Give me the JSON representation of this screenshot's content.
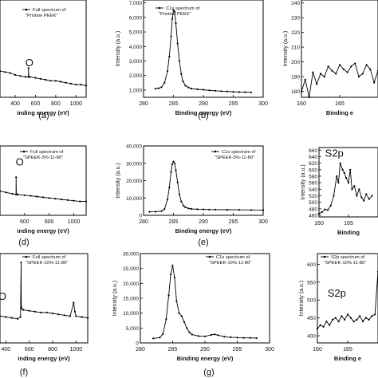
{
  "chart_data": [
    {
      "id": "a",
      "type": "line",
      "panel_label": "(a)",
      "legend": [
        "Full spectrum of",
        "\"Pristine PEEK\""
      ],
      "xlabel": "inding energy (eV)",
      "ylabel": "",
      "xticks": [
        400,
        600,
        800,
        1000
      ],
      "yticks": [],
      "xlim": [
        250,
        1100
      ],
      "ylim": [
        0,
        100
      ],
      "annotations": [
        {
          "text": "O",
          "x": 540,
          "y": 32,
          "size": 13
        }
      ],
      "series": [
        {
          "x": [
            250,
            300,
            350,
            400,
            450,
            500,
            530,
            531,
            533,
            545,
            600,
            650,
            700,
            750,
            800,
            850,
            900,
            950,
            1000,
            1050,
            1100
          ],
          "y": [
            27,
            26,
            25,
            23,
            22,
            21,
            21,
            30,
            21,
            21,
            20,
            19,
            18,
            17,
            17,
            16,
            15,
            14,
            13,
            13,
            12
          ]
        }
      ]
    },
    {
      "id": "b",
      "type": "line",
      "panel_label": "(b)",
      "legend": [
        "C1s spectrum of",
        "\"Pristine PEEK\""
      ],
      "xlabel": "Binding energy (eV)",
      "ylabel": "Intensity (a.u.)",
      "xticks": [
        280,
        285,
        290,
        295,
        300
      ],
      "yticks": [
        1000,
        2000,
        3000,
        4000,
        5000,
        6000,
        7000
      ],
      "ytick_labels": [
        "1,000",
        "2,000",
        "3,000",
        "4,000",
        "5,000",
        "6,000",
        "7,000"
      ],
      "xlim": [
        280,
        300
      ],
      "ylim": [
        500,
        7200
      ],
      "series": [
        {
          "x": [
            282,
            282.5,
            283,
            283.5,
            284,
            284.3,
            284.6,
            284.8,
            285,
            285.2,
            285.4,
            285.7,
            286,
            286.3,
            286.6,
            287,
            287.5,
            288,
            289,
            290,
            291,
            292,
            293,
            294,
            295,
            296,
            297,
            298
          ],
          "y": [
            1100,
            1120,
            1200,
            1500,
            2300,
            3300,
            4700,
            5900,
            6500,
            6400,
            5600,
            4200,
            3000,
            2100,
            1600,
            1300,
            1180,
            1100,
            1050,
            1020,
            980,
            950,
            920,
            900,
            880,
            860,
            850,
            840
          ]
        }
      ]
    },
    {
      "id": "c",
      "type": "line",
      "panel_label": "",
      "legend": [],
      "xlabel": "Binding e",
      "ylabel": "Intensity (a.u.)",
      "xticks": [
        160,
        165
      ],
      "yticks": [
        180,
        190,
        200,
        210,
        220,
        230,
        240
      ],
      "xlim": [
        160,
        170
      ],
      "ylim": [
        176,
        242
      ],
      "series": [
        {
          "x": [
            160,
            160.5,
            161,
            161.5,
            162,
            162.5,
            163,
            163.5,
            164,
            164.5,
            165,
            165.5,
            166,
            166.5,
            167,
            167.5,
            168,
            168.5,
            169,
            169.5,
            170
          ],
          "y": [
            180,
            188,
            176,
            193,
            185,
            192,
            190,
            197,
            194,
            192,
            198,
            195,
            193,
            197,
            199,
            190,
            192,
            198,
            195,
            186,
            194
          ]
        }
      ]
    },
    {
      "id": "d",
      "type": "line",
      "panel_label": "(d)",
      "legend": [
        "Full spectrum of",
        "\"SPEEK-3%-11-80\""
      ],
      "xlabel": "inding energy (eV)",
      "ylabel": "",
      "xticks": [
        600,
        800,
        1000
      ],
      "yticks": [],
      "xlim": [
        400,
        1100
      ],
      "ylim": [
        0,
        100
      ],
      "annotations": [
        {
          "text": "O",
          "x": 560,
          "y": 72,
          "size": 13
        }
      ],
      "series": [
        {
          "x": [
            400,
            450,
            500,
            530,
            531,
            533,
            545,
            600,
            650,
            700,
            750,
            800,
            850,
            900,
            950,
            1000,
            1050,
            1100
          ],
          "y": [
            35,
            33,
            31,
            30,
            55,
            30,
            30,
            29,
            28,
            27,
            26,
            25,
            24,
            23,
            22,
            21,
            20,
            20
          ]
        }
      ]
    },
    {
      "id": "e",
      "type": "line",
      "panel_label": "(e)",
      "legend": [
        "C1s spectrum of",
        "\"SPEEK-3%-11-80\""
      ],
      "xlabel": "Binding energy (eV)",
      "ylabel": "Intensity (a.u.)",
      "xticks": [
        280,
        285,
        290,
        295,
        300
      ],
      "yticks": [
        0,
        10000,
        20000,
        30000,
        40000
      ],
      "ytick_labels": [
        "0",
        "10,000",
        "20,000",
        "30,000",
        "40,000"
      ],
      "xlim": [
        280,
        300
      ],
      "ylim": [
        0,
        40000
      ],
      "series": [
        {
          "x": [
            281,
            282,
            283,
            283.5,
            284,
            284.3,
            284.6,
            284.8,
            285,
            285.2,
            285.4,
            285.7,
            286,
            286.3,
            286.7,
            287,
            287.5,
            288,
            289,
            290,
            291,
            292,
            294,
            296,
            298,
            300
          ],
          "y": [
            2000,
            2100,
            2400,
            3600,
            9000,
            16000,
            25000,
            29500,
            31000,
            30000,
            26000,
            19000,
            12000,
            8000,
            5500,
            4600,
            4000,
            3700,
            3500,
            3400,
            3300,
            3250,
            3200,
            3150,
            3100,
            3050
          ]
        }
      ]
    },
    {
      "id": "f_s2p",
      "type": "line",
      "panel_label": "",
      "legend": [],
      "title_annotation": "S2p",
      "xlabel": "Binding",
      "ylabel": "Intensity (a.u.)",
      "xticks": [
        160,
        165
      ],
      "yticks": [
        460,
        480,
        500,
        520,
        540,
        560,
        580,
        600,
        620,
        640,
        660
      ],
      "xlim": [
        160,
        170
      ],
      "ylim": [
        455,
        668
      ],
      "annotations": [
        {
          "text": "S2p",
          "x": 162.6,
          "y": 640,
          "size": 13
        }
      ],
      "series": [
        {
          "x": [
            160,
            160.5,
            161,
            161.5,
            162,
            162.5,
            163,
            163.3,
            163.6,
            164,
            164.3,
            164.6,
            165,
            165.3,
            165.6,
            166,
            166.4,
            166.8,
            167.2,
            167.6,
            168,
            168.5,
            169
          ],
          "y": [
            465,
            470,
            478,
            476,
            490,
            520,
            580,
            560,
            620,
            600,
            590,
            575,
            560,
            600,
            540,
            550,
            520,
            540,
            515,
            505,
            525,
            510,
            520
          ]
        }
      ]
    },
    {
      "id": "f",
      "type": "line",
      "panel_label": "(f)",
      "legend": [
        "Full spectrum of",
        "\"SPEEK-10%-11-80\""
      ],
      "xlabel": "inding energy (eV)",
      "ylabel": "",
      "xticks": [
        400,
        600,
        800,
        1000
      ],
      "yticks": [],
      "xlim": [
        350,
        1100
      ],
      "ylim": [
        0,
        100
      ],
      "annotations": [
        {
          "text": "O",
          "x": 370,
          "y": 48,
          "size": 13
        }
      ],
      "series": [
        {
          "x": [
            350,
            400,
            450,
            500,
            525,
            531,
            532,
            536,
            550,
            600,
            650,
            700,
            750,
            800,
            850,
            900,
            950,
            980,
            990,
            1000,
            1050,
            1100
          ],
          "y": [
            30,
            29,
            28,
            27,
            29,
            90,
            40,
            38,
            37,
            36,
            35,
            34,
            34,
            33,
            32,
            31,
            30,
            45,
            35,
            30,
            29,
            28
          ]
        }
      ]
    },
    {
      "id": "g",
      "type": "line",
      "panel_label": "(g)",
      "legend": [
        "C1s spectrum of",
        "\"SPEEK-10%-11-80\""
      ],
      "xlabel": "Binding energy (eV)",
      "ylabel": "Intensity (a.u.)",
      "xticks": [
        280,
        285,
        290,
        295,
        300
      ],
      "yticks": [
        0,
        5000,
        10000,
        15000,
        20000,
        25000,
        30000
      ],
      "ytick_labels": [
        "0",
        "5,000",
        "10,000",
        "15,000",
        "20,000",
        "25,000",
        "30,000"
      ],
      "xlim": [
        280,
        300
      ],
      "ylim": [
        0,
        30000
      ],
      "series": [
        {
          "x": [
            282,
            283,
            283.5,
            284,
            284.4,
            284.7,
            285,
            285.3,
            285.6,
            286,
            286.4,
            286.8,
            287.2,
            287.6,
            288,
            289,
            290,
            291,
            291.5,
            292,
            293,
            294,
            295,
            296,
            297,
            298
          ],
          "y": [
            1500,
            1800,
            3000,
            8000,
            16000,
            23000,
            26000,
            22000,
            14000,
            10000,
            9000,
            7000,
            5000,
            3500,
            2800,
            2300,
            2200,
            2700,
            2900,
            2600,
            2100,
            1900,
            1800,
            1700,
            1700,
            1600
          ]
        }
      ]
    },
    {
      "id": "h",
      "type": "line",
      "panel_label": "",
      "legend": [
        "S2p spectrum of",
        "\"SPEEK-10%-11-80\""
      ],
      "xlabel": "Binding e",
      "ylabel": "Intensity (a.u.)",
      "xticks": [
        160,
        165
      ],
      "yticks": [
        400,
        450,
        500,
        550,
        600
      ],
      "xlim": [
        160,
        170
      ],
      "ylim": [
        380,
        630
      ],
      "annotations": [
        {
          "text": "S2p",
          "x": 163.2,
          "y": 510,
          "size": 13
        }
      ],
      "series": [
        {
          "x": [
            160,
            160.5,
            161,
            161.5,
            162,
            162.5,
            163,
            163.5,
            164,
            164.5,
            165,
            165.5,
            166,
            166.5,
            167,
            167.5,
            168,
            168.5,
            169,
            169.5,
            170
          ],
          "y": [
            420,
            430,
            425,
            440,
            430,
            445,
            450,
            440,
            455,
            445,
            460,
            450,
            440,
            445,
            455,
            440,
            450,
            445,
            455,
            460,
            580
          ]
        }
      ]
    }
  ]
}
